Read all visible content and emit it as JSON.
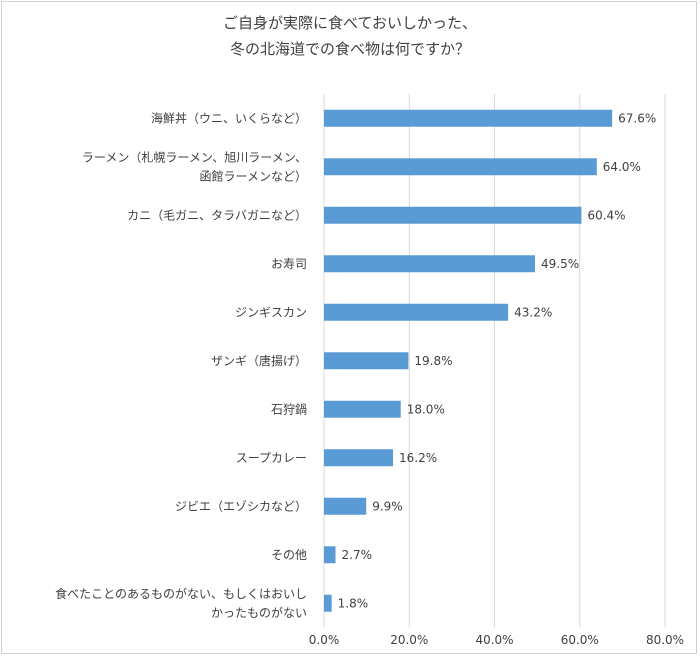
{
  "chart_data": {
    "type": "bar",
    "orientation": "horizontal",
    "title_lines": [
      "ご自身が実際に食べておいしかった、",
      "冬の北海道での食べ物は何ですか？"
    ],
    "categories": [
      [
        "海鮮丼（ウニ、いくらなど）"
      ],
      [
        "ラーメン（札幌ラーメン、旭川ラーメン、",
        "函館ラーメンなど）"
      ],
      [
        "カニ（毛ガニ、タラバガニなど）"
      ],
      [
        "お寿司"
      ],
      [
        "ジンギスカン"
      ],
      [
        "ザンギ（唐揚げ）"
      ],
      [
        "石狩鍋"
      ],
      [
        "スープカレー"
      ],
      [
        "ジビエ（エゾシカなど）"
      ],
      [
        "その他"
      ],
      [
        "食べたことのあるものがない、もしくはおいし",
        "かったものがない"
      ]
    ],
    "values": [
      67.6,
      64.0,
      60.4,
      49.5,
      43.2,
      19.8,
      18.0,
      16.2,
      9.9,
      2.7,
      1.8
    ],
    "value_labels": [
      "67.6%",
      "64.0%",
      "60.4%",
      "49.5%",
      "43.2%",
      "19.8%",
      "18.0%",
      "16.2%",
      "9.9%",
      "2.7%",
      "1.8%"
    ],
    "x_ticks": [
      0,
      20,
      40,
      60,
      80
    ],
    "x_tick_labels": [
      "0.0%",
      "20.0%",
      "40.0%",
      "60.0%",
      "80.0%"
    ],
    "xlim": [
      0,
      80
    ],
    "bar_color": "#5b9bd5",
    "grid": true,
    "grid_color": "#d9d9d9"
  }
}
